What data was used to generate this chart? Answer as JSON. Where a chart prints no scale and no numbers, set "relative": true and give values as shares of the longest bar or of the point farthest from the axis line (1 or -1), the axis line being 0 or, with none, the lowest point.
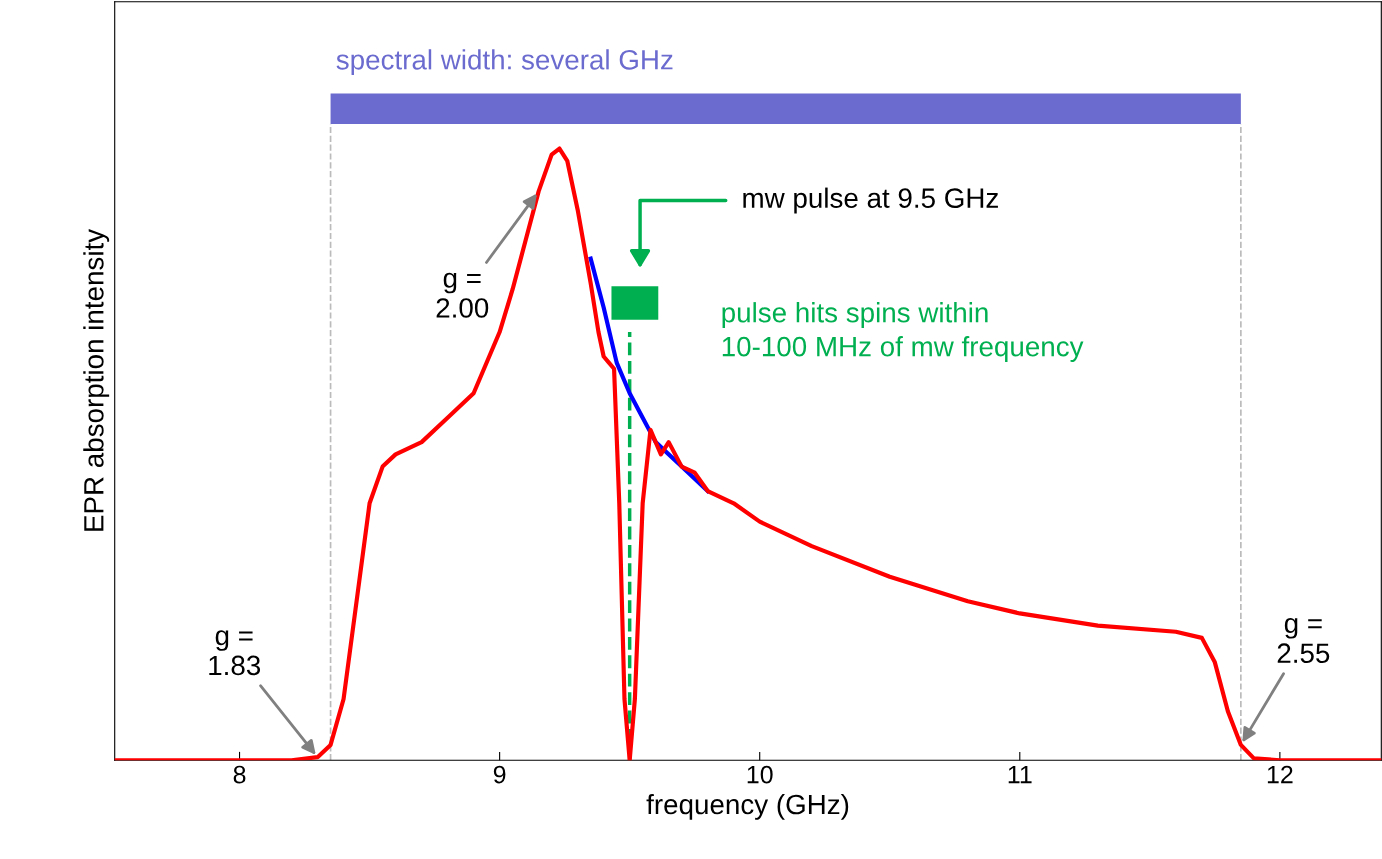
{
  "chart_data": {
    "type": "line",
    "relative": true,
    "xlabel": "frequency (GHz)",
    "ylabel": "EPR absorption intensity",
    "xlim": [
      7.52,
      12.39
    ],
    "xticks": [
      8,
      9,
      10,
      11,
      12
    ],
    "grid": false,
    "legend": false,
    "marker": "none",
    "line_style": "solid",
    "series": [
      {
        "color": "#0000ff",
        "x": [
          9.35,
          9.4,
          9.45,
          9.5,
          9.55,
          9.6,
          9.7,
          9.8
        ],
        "values": [
          0.82,
          0.74,
          0.65,
          0.6,
          0.56,
          0.52,
          0.48,
          0.44
        ]
      },
      {
        "color": "#ff0000",
        "x": [
          7.52,
          8.2,
          8.3,
          8.35,
          8.4,
          8.45,
          8.5,
          8.55,
          8.6,
          8.7,
          8.8,
          8.9,
          9.0,
          9.05,
          9.1,
          9.15,
          9.2,
          9.23,
          9.26,
          9.3,
          9.35,
          9.38,
          9.4,
          9.42,
          9.44,
          9.46,
          9.48,
          9.5,
          9.52,
          9.55,
          9.58,
          9.6,
          9.62,
          9.65,
          9.7,
          9.75,
          9.8,
          9.9,
          10.0,
          10.2,
          10.5,
          10.8,
          11.0,
          11.3,
          11.6,
          11.7,
          11.75,
          11.8,
          11.85,
          11.9,
          12.0,
          12.39
        ],
        "values": [
          0,
          0,
          0.005,
          0.025,
          0.1,
          0.26,
          0.42,
          0.48,
          0.5,
          0.52,
          0.56,
          0.6,
          0.7,
          0.77,
          0.85,
          0.93,
          0.99,
          1.0,
          0.98,
          0.9,
          0.78,
          0.7,
          0.66,
          0.65,
          0.64,
          0.42,
          0.1,
          0,
          0.1,
          0.42,
          0.54,
          0.52,
          0.5,
          0.52,
          0.48,
          0.47,
          0.44,
          0.42,
          0.39,
          0.35,
          0.3,
          0.26,
          0.24,
          0.22,
          0.21,
          0.2,
          0.16,
          0.08,
          0.025,
          0.003,
          0,
          0
        ]
      }
    ],
    "ref_lines": [
      {
        "axis": "x",
        "value": 8.35,
        "color": "#bbbbbb",
        "line_style": "dashed"
      },
      {
        "axis": "x",
        "value": 11.85,
        "color": "#bbbbbb",
        "line_style": "dashed"
      },
      {
        "axis": "x",
        "value": 9.5,
        "color": "#00b050",
        "line_style": "dashed"
      }
    ],
    "annotations": [
      {
        "text": "g =\n1.83",
        "x": 8.3,
        "y": 0.005
      },
      {
        "text": "g =\n2.00",
        "x": 9.15,
        "y": 0.93
      },
      {
        "text": "g =\n2.55",
        "x": 11.85,
        "y": 0.025
      },
      "spectral width: several GHz",
      "mw pulse at 9.5 GHz",
      "pulse hits spins within\n10-100 MHz of mw frequency"
    ]
  }
}
